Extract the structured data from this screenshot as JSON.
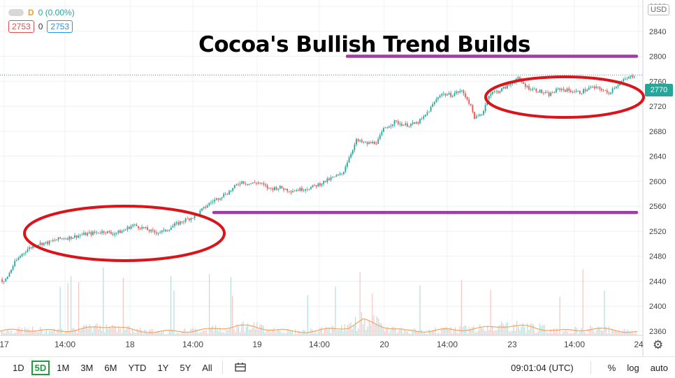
{
  "legend": {
    "interval": "D",
    "change": "0 (0.00%)",
    "bid": "2753",
    "spread": "0",
    "ask": "2753"
  },
  "title": "Cocoa's Bullish Trend Builds",
  "currency": "USD",
  "last_price": "2770",
  "colors": {
    "up": "#26a69a",
    "down": "#ef5350",
    "annotation_line": "#9c3fa0",
    "annotation_ellipse": "#d9151b",
    "volume_ma": "#f4a460"
  },
  "bottom_bar": {
    "timeframes": [
      "1D",
      "5D",
      "1M",
      "3M",
      "6M",
      "YTD",
      "1Y",
      "5Y",
      "All"
    ],
    "active": "5D",
    "clock": "09:01:04 (UTC)",
    "percent": "%",
    "log": "log",
    "auto": "auto"
  },
  "chart_data": {
    "type": "candlestick",
    "y_ticks": [
      2880,
      2840,
      2800,
      2760,
      2720,
      2680,
      2640,
      2600,
      2560,
      2520,
      2480,
      2440,
      2400,
      2360
    ],
    "ylim": [
      2325,
      2900
    ],
    "x_ticks": [
      "17",
      "14:00",
      "18",
      "14:00",
      "19",
      "14:00",
      "20",
      "14:00",
      "23",
      "14:00",
      "24"
    ],
    "price_path": [
      [
        0,
        2443
      ],
      [
        5,
        2437
      ],
      [
        12,
        2450
      ],
      [
        20,
        2468
      ],
      [
        30,
        2482
      ],
      [
        40,
        2492
      ],
      [
        55,
        2500
      ],
      [
        70,
        2502
      ],
      [
        85,
        2508
      ],
      [
        100,
        2510
      ],
      [
        120,
        2515
      ],
      [
        140,
        2518
      ],
      [
        150,
        2520
      ],
      [
        160,
        2516
      ],
      [
        175,
        2520
      ],
      [
        190,
        2530
      ],
      [
        205,
        2525
      ],
      [
        220,
        2518
      ],
      [
        235,
        2520
      ],
      [
        250,
        2530
      ],
      [
        265,
        2538
      ],
      [
        280,
        2545
      ],
      [
        290,
        2555
      ],
      [
        300,
        2565
      ],
      [
        315,
        2575
      ],
      [
        330,
        2585
      ],
      [
        345,
        2600
      ],
      [
        355,
        2596
      ],
      [
        370,
        2598
      ],
      [
        385,
        2588
      ],
      [
        400,
        2590
      ],
      [
        415,
        2585
      ],
      [
        430,
        2587
      ],
      [
        445,
        2590
      ],
      [
        460,
        2597
      ],
      [
        475,
        2605
      ],
      [
        490,
        2612
      ],
      [
        500,
        2640
      ],
      [
        510,
        2665
      ],
      [
        525,
        2660
      ],
      [
        540,
        2663
      ],
      [
        550,
        2685
      ],
      [
        565,
        2695
      ],
      [
        580,
        2690
      ],
      [
        595,
        2692
      ],
      [
        605,
        2700
      ],
      [
        615,
        2715
      ],
      [
        630,
        2740
      ],
      [
        645,
        2738
      ],
      [
        660,
        2745
      ],
      [
        670,
        2730
      ],
      [
        680,
        2700
      ],
      [
        690,
        2708
      ],
      [
        700,
        2740
      ],
      [
        715,
        2745
      ],
      [
        730,
        2755
      ],
      [
        740,
        2765
      ],
      [
        755,
        2750
      ],
      [
        770,
        2745
      ],
      [
        785,
        2738
      ],
      [
        800,
        2748
      ],
      [
        815,
        2745
      ],
      [
        830,
        2742
      ],
      [
        845,
        2750
      ],
      [
        860,
        2748
      ],
      [
        870,
        2740
      ],
      [
        880,
        2752
      ],
      [
        895,
        2763
      ],
      [
        908,
        2770
      ]
    ],
    "horizontal_levels": [
      2800,
      2550
    ],
    "annotations": [
      "support-zone-ellipse",
      "consolidation-ellipse"
    ],
    "volume_ma_path": [
      [
        0,
        6
      ],
      [
        40,
        8
      ],
      [
        80,
        6
      ],
      [
        120,
        9
      ],
      [
        160,
        14
      ],
      [
        190,
        7
      ],
      [
        230,
        5
      ],
      [
        260,
        6
      ],
      [
        300,
        8
      ],
      [
        340,
        14
      ],
      [
        380,
        10
      ],
      [
        420,
        5
      ],
      [
        460,
        7
      ],
      [
        500,
        12
      ],
      [
        520,
        22
      ],
      [
        545,
        14
      ],
      [
        580,
        6
      ],
      [
        620,
        7
      ],
      [
        650,
        8
      ],
      [
        690,
        10
      ],
      [
        720,
        14
      ],
      [
        760,
        12
      ],
      [
        800,
        6
      ],
      [
        840,
        9
      ],
      [
        880,
        8
      ],
      [
        912,
        4
      ]
    ]
  }
}
